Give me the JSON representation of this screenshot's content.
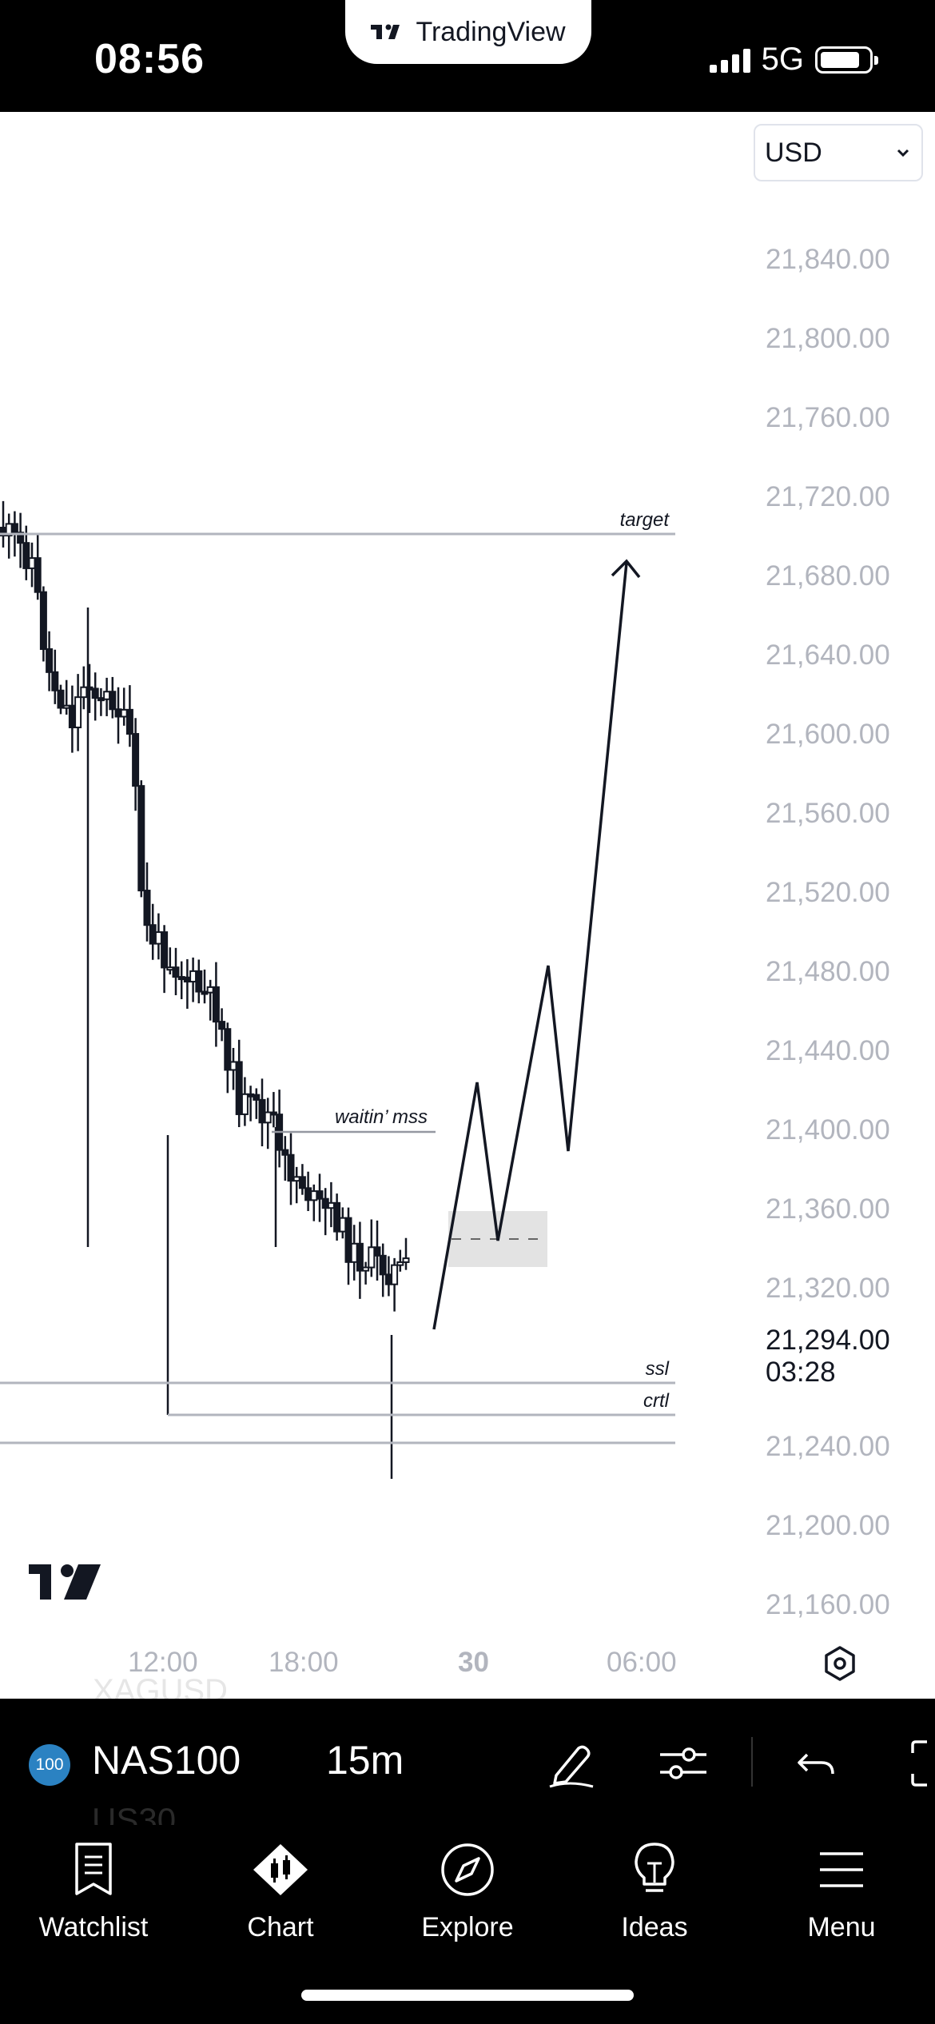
{
  "status_bar": {
    "time": "08:56",
    "network": "5G",
    "app_badge": "TradingView"
  },
  "currency": {
    "selected": "USD"
  },
  "price_axis": {
    "labels": [
      "21,840.00",
      "21,800.00",
      "21,760.00",
      "21,720.00",
      "21,680.00",
      "21,640.00",
      "21,600.00",
      "21,560.00",
      "21,520.00",
      "21,480.00",
      "21,440.00",
      "21,400.00",
      "21,360.00",
      "21,320.00",
      "21,240.00",
      "21,200.00",
      "21,160.00"
    ],
    "current_price": "21,294.00",
    "countdown": "03:28"
  },
  "time_axis": {
    "labels": [
      "12:00",
      "18:00",
      "30",
      "06:00"
    ]
  },
  "annotations": {
    "target": "target",
    "waiting": "waitin’ mss",
    "ssl": "ssl",
    "crtl": "crtl"
  },
  "toolbar": {
    "symbol": "NAS100",
    "interval": "15m",
    "badge": "100",
    "ghost_prev": "XAGUSD",
    "ghost_next": "US30"
  },
  "nav": {
    "items": [
      "Watchlist",
      "Chart",
      "Explore",
      "Ideas",
      "Menu"
    ]
  }
}
